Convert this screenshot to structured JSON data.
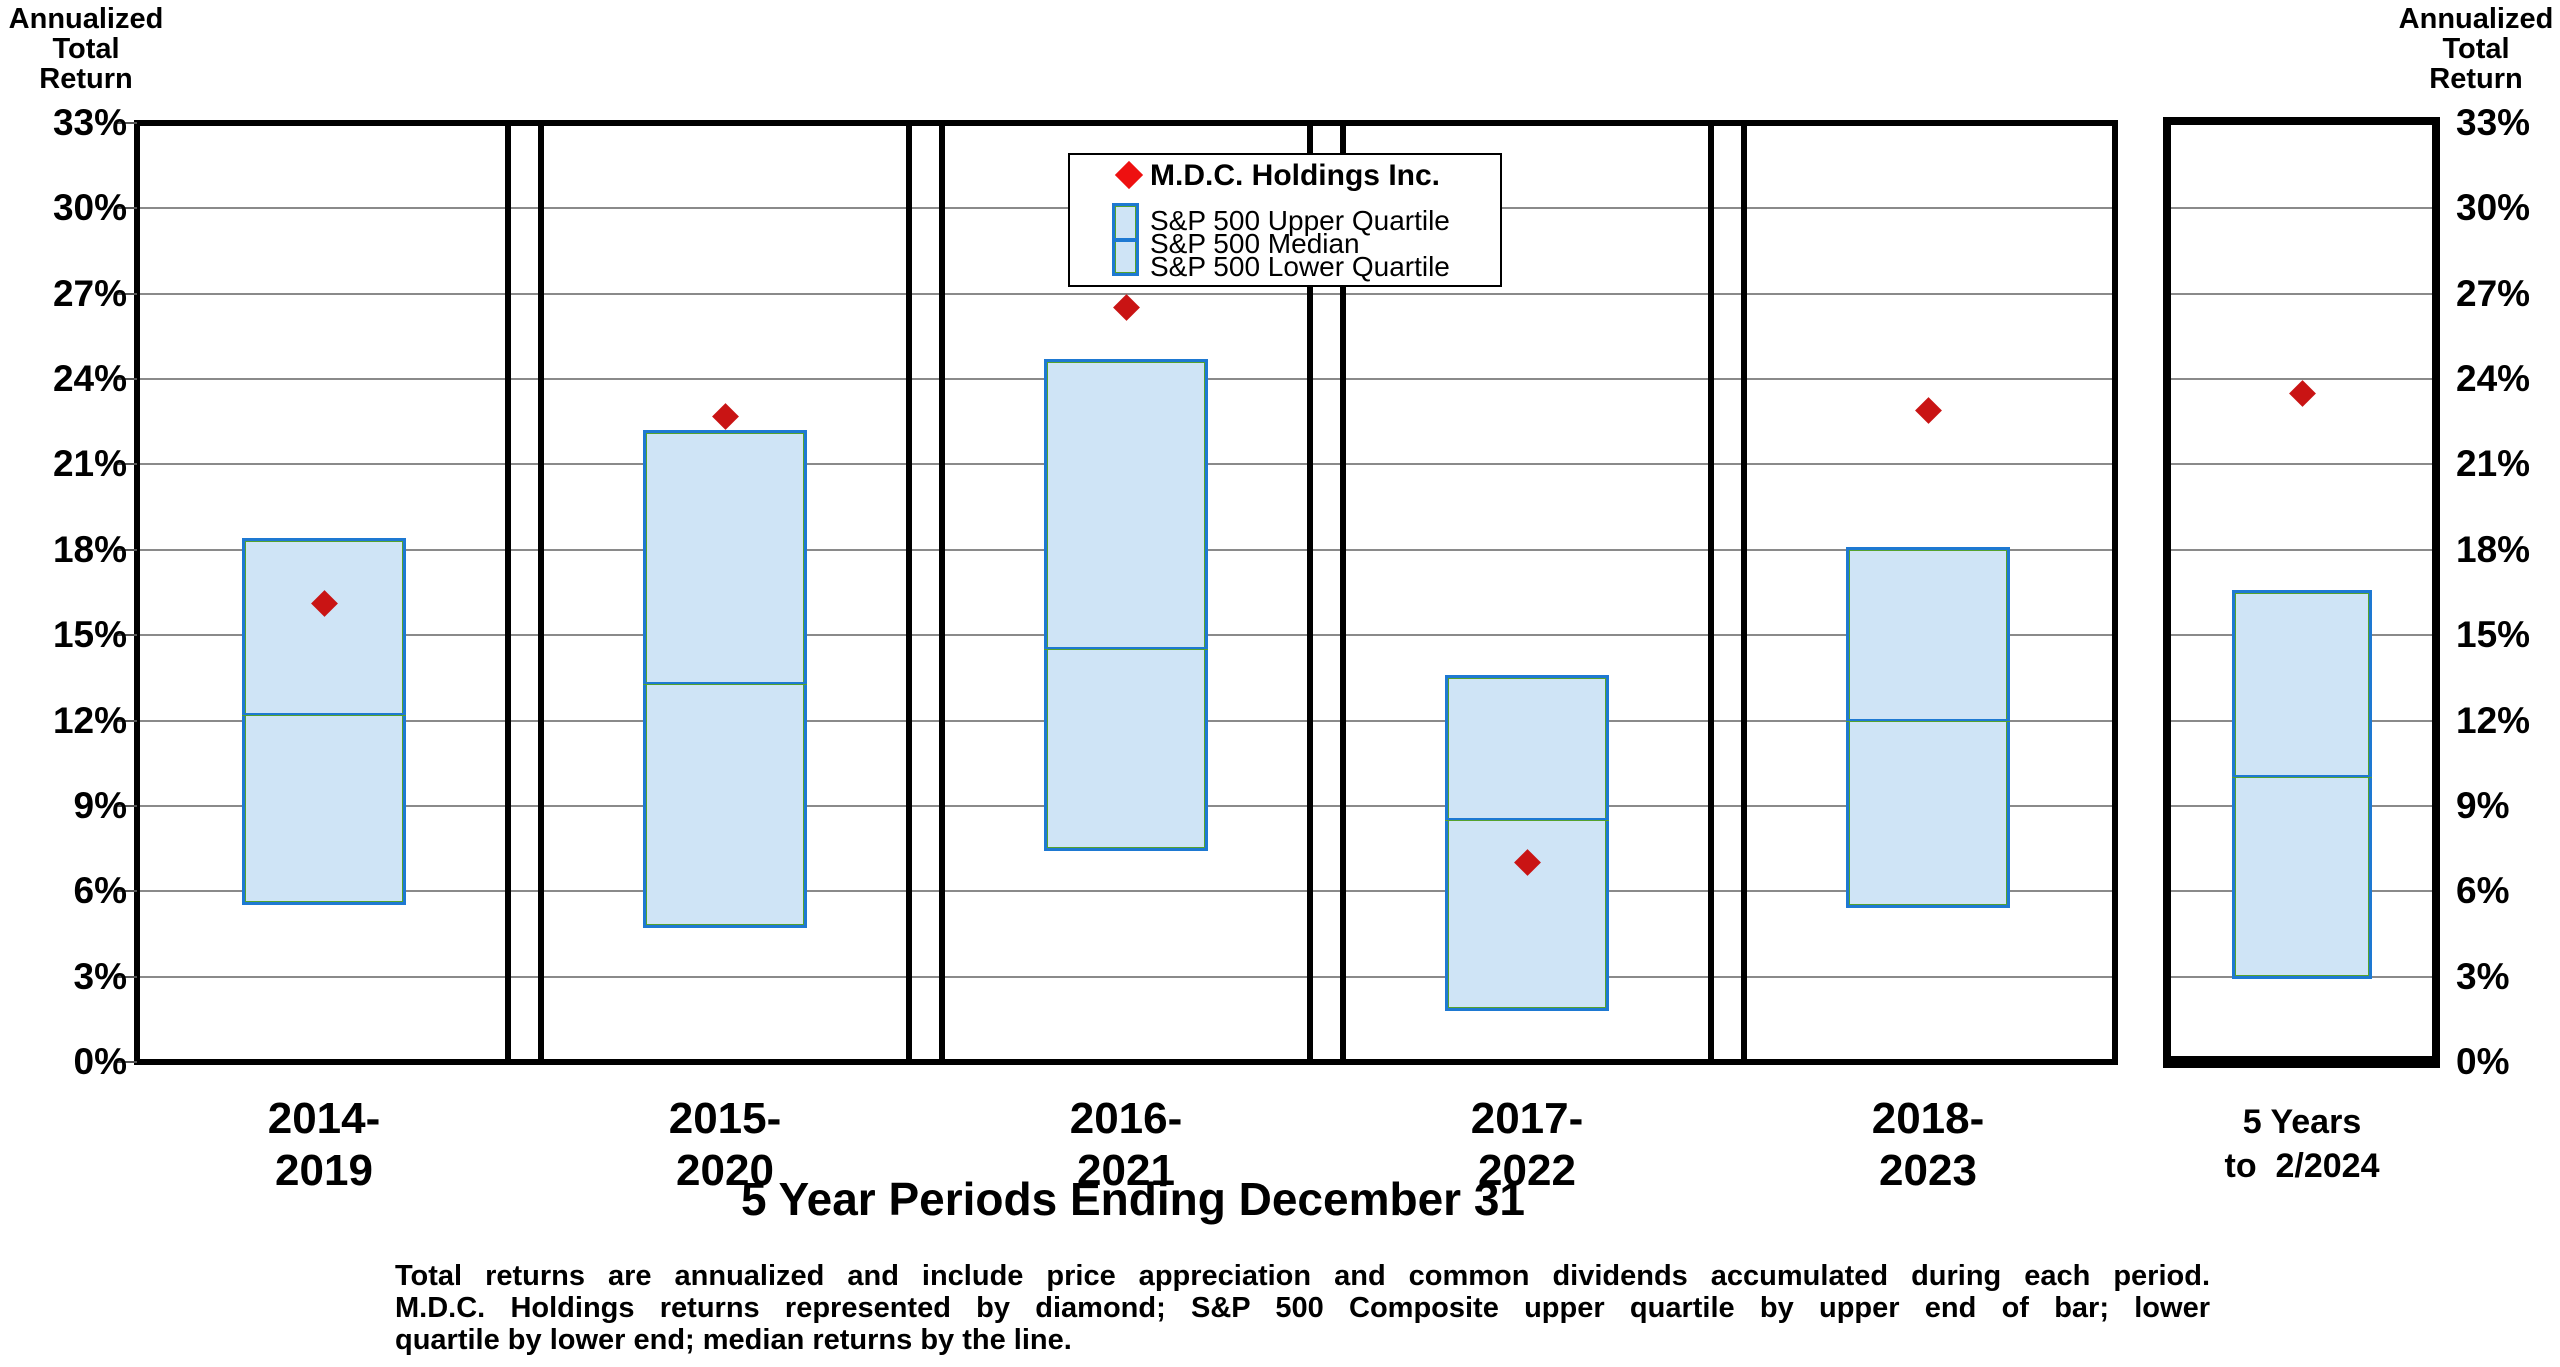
{
  "ui": {
    "axis_header_left": {
      "lines": [
        "Annualized",
        "Total",
        "Return"
      ]
    },
    "axis_header_right": {
      "lines": [
        "Annualized",
        "Total",
        "Return"
      ]
    },
    "legend": {
      "marker_label": "M.D.C. Holdings Inc.",
      "bar_labels": [
        "S&P 500 Upper Quartile",
        "S&P 500 Median",
        "S&P 500 Lower Quartile"
      ]
    },
    "xlabel": "5 Year Periods Ending December 31",
    "footnote_lines": [
      "Total returns are annualized and include price appreciation and common dividends accumulated during each period.",
      "M.D.C. Holdings returns represented by diamond; S&P 500 Composite upper quartile by upper end of bar; lower",
      "quartile by lower end; median returns by the line."
    ],
    "colors": {
      "bar_fill": "#cfe4f6",
      "bar_border": "#1e79d2",
      "bar_inner_line": "#55a22e",
      "marker_red": "#c91414",
      "legend_marker_red": "#ee1010",
      "gridline_gray": "#8a8a8a"
    }
  },
  "chart_data": {
    "type": "bar",
    "subtype": "floating-quartile-bars-with-diamond-markers",
    "title": "",
    "xlabel": "5 Year Periods Ending December 31",
    "ylabel_left": "Annualized Total Return",
    "ylabel_right": "Annualized Total Return",
    "ylim": [
      0,
      33
    ],
    "ytick_step": 3,
    "y_ticks": [
      "0%",
      "3%",
      "6%",
      "9%",
      "12%",
      "15%",
      "18%",
      "21%",
      "24%",
      "27%",
      "30%",
      "33%"
    ],
    "grid": true,
    "legend_position": "top-center",
    "highlighted_panel_index": 5,
    "categories": [
      [
        "2014-",
        "2019"
      ],
      [
        "2015-",
        "2020"
      ],
      [
        "2016-",
        "2021"
      ],
      [
        "2017-",
        "2022"
      ],
      [
        "2018-",
        "2023"
      ],
      [
        "5 Years",
        "to  2/2024"
      ]
    ],
    "series": [
      {
        "name": "M.D.C. Holdings Inc.",
        "marker": "diamond",
        "values": [
          16.1,
          22.7,
          26.5,
          7.0,
          22.9,
          23.5
        ]
      },
      {
        "name": "S&P 500 Upper Quartile",
        "role": "bar-top",
        "values": [
          18.4,
          22.2,
          24.7,
          13.6,
          18.1,
          16.6
        ]
      },
      {
        "name": "S&P 500 Median",
        "role": "bar-median",
        "values": [
          12.2,
          13.3,
          14.5,
          8.5,
          12.0,
          10.0
        ]
      },
      {
        "name": "S&P 500 Lower Quartile",
        "role": "bar-bottom",
        "values": [
          5.5,
          4.7,
          7.4,
          1.8,
          5.4,
          2.9
        ]
      }
    ]
  }
}
